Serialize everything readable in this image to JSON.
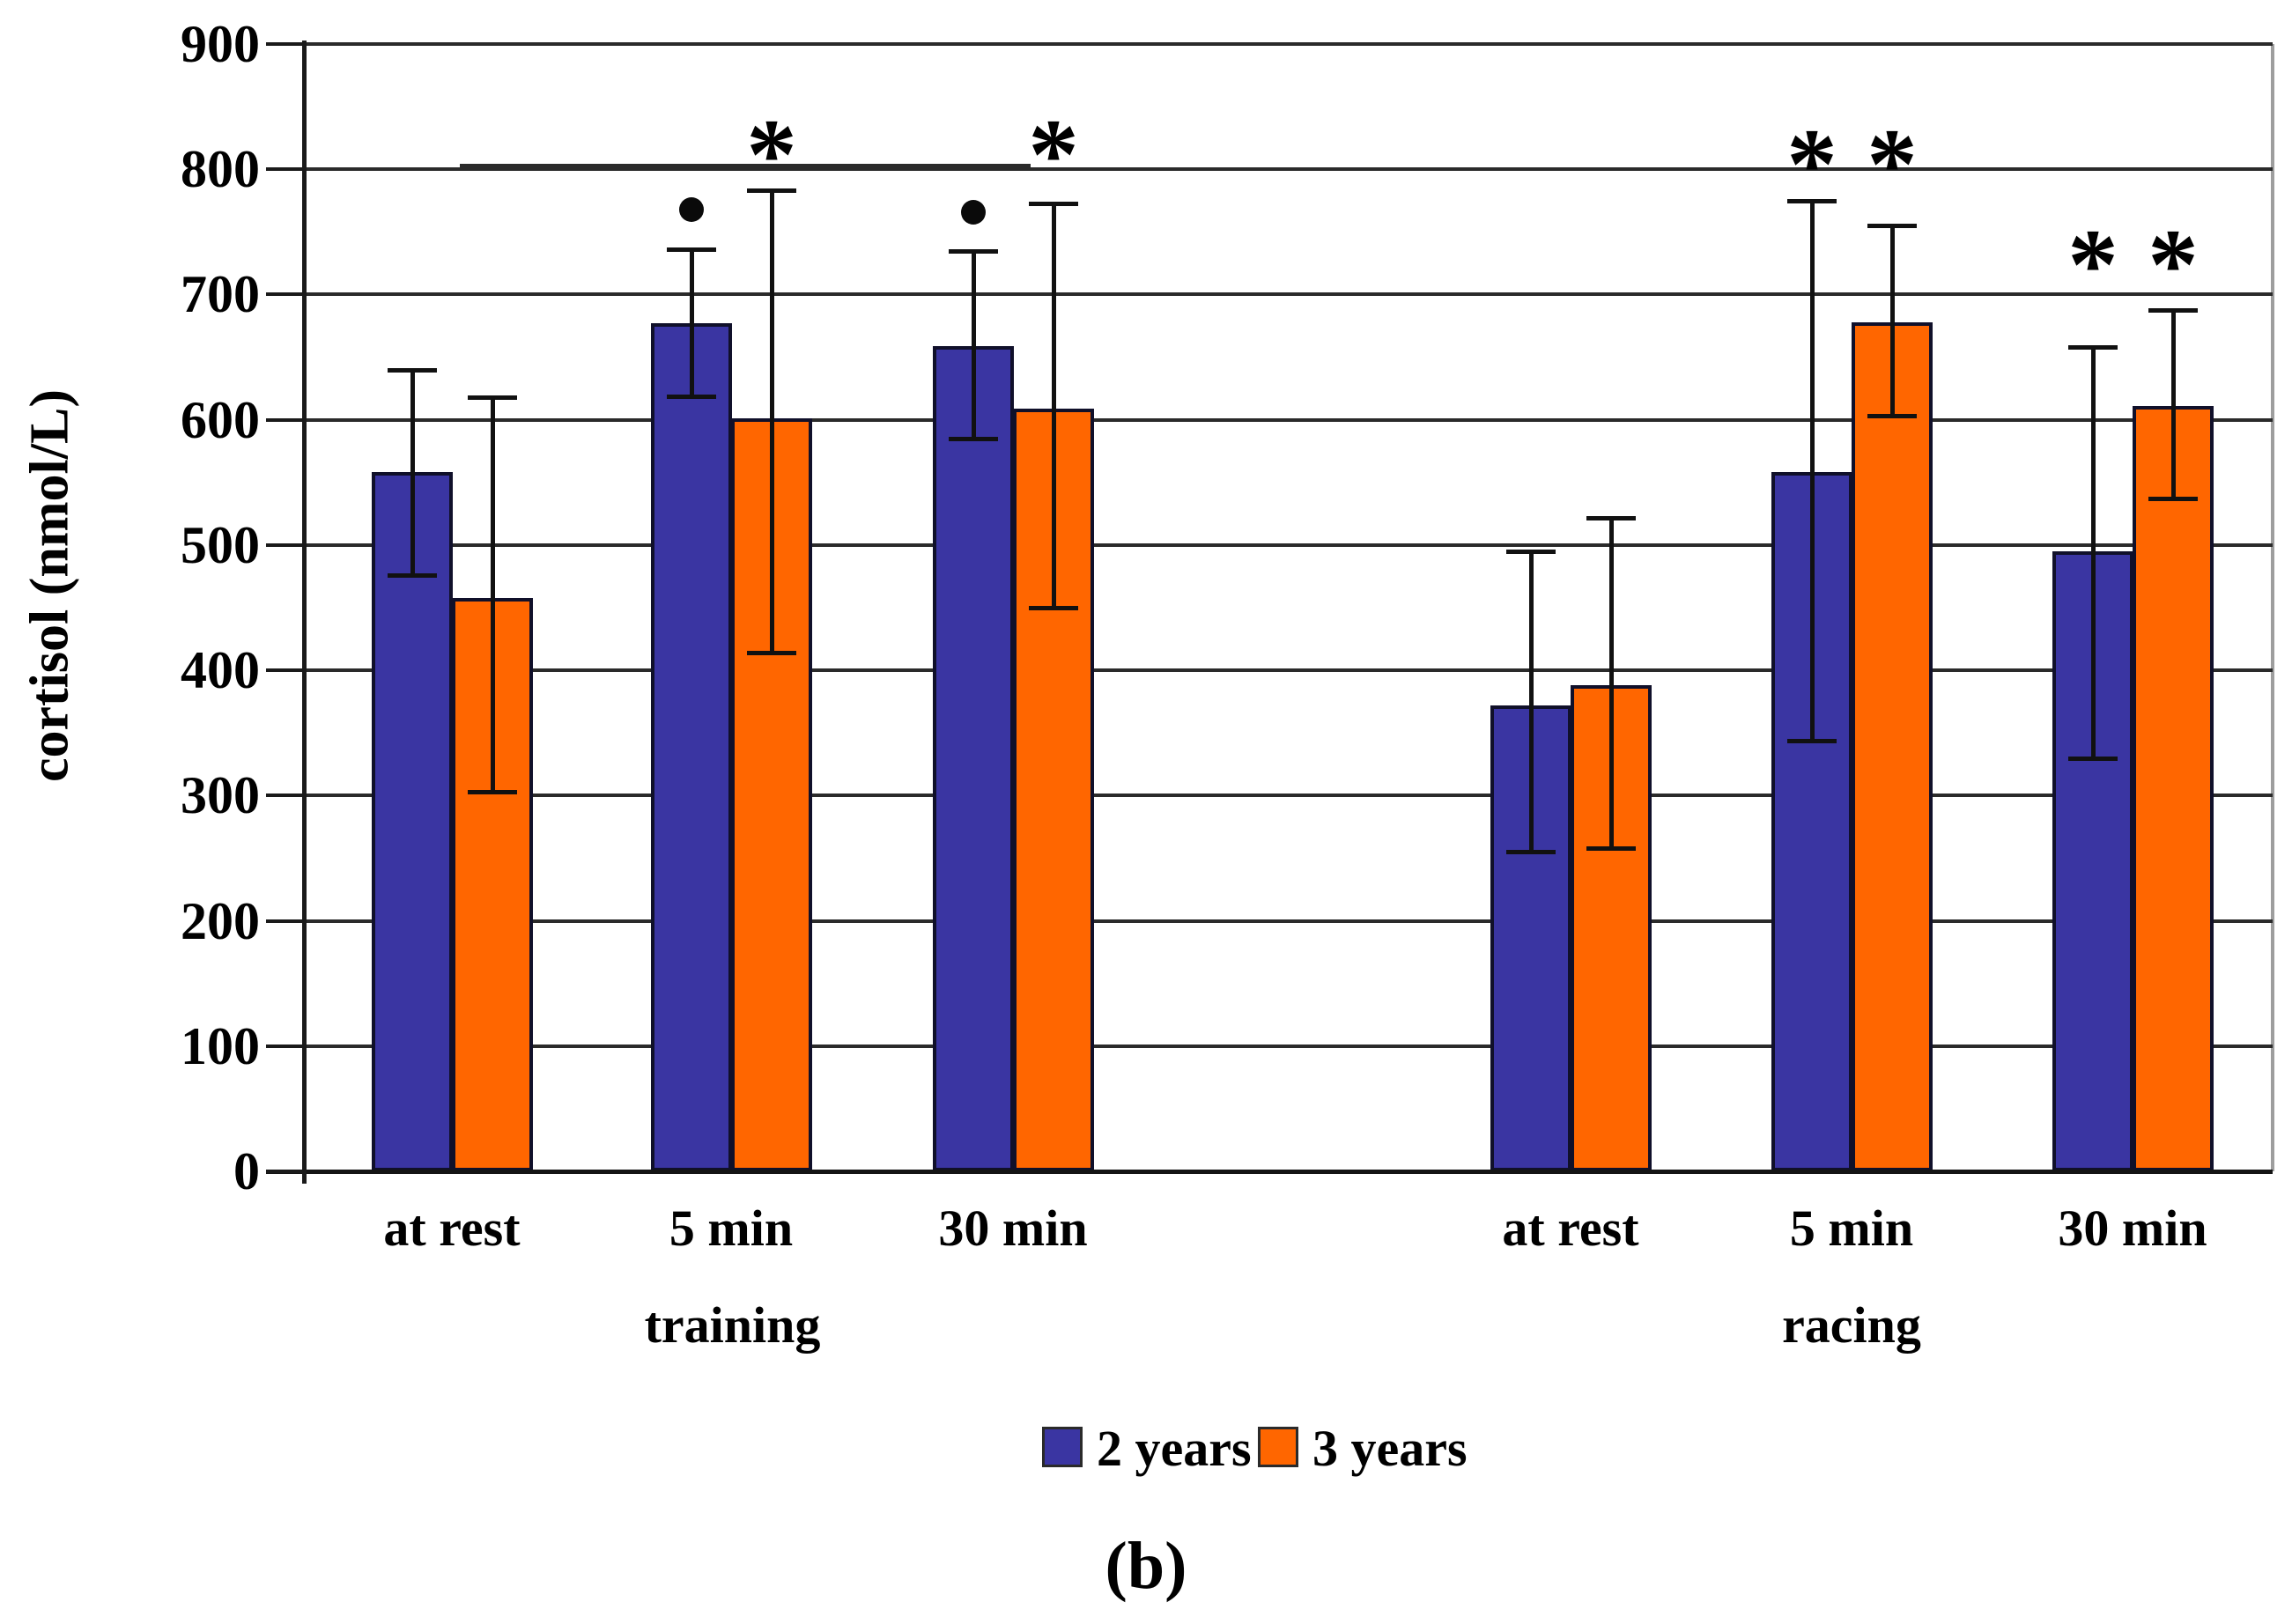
{
  "figure": {
    "caption": "(b)"
  },
  "chart_data": {
    "type": "bar",
    "title": "",
    "xlabel": "",
    "ylabel": "cortisol (nmol/L)",
    "ylim": [
      0,
      900
    ],
    "y_ticks": [
      0,
      100,
      200,
      300,
      400,
      500,
      600,
      700,
      800,
      900
    ],
    "grid": true,
    "legend_position": "bottom",
    "sections": [
      "training",
      "racing"
    ],
    "categories": [
      "at rest",
      "5 min",
      "30 min",
      "at rest",
      "5 min",
      "30 min"
    ],
    "series": [
      {
        "name": "2 years",
        "color": "#3A35A2",
        "values": [
          558,
          677,
          659,
          372,
          558,
          495
        ],
        "err_low": [
          476,
          619,
          585,
          255,
          344,
          330
        ],
        "err_high": [
          640,
          736,
          735,
          495,
          775,
          658
        ]
      },
      {
        "name": "3 years",
        "color": "#FF6600",
        "values": [
          458,
          601,
          609,
          388,
          678,
          611
        ],
        "err_low": [
          303,
          414,
          450,
          258,
          603,
          537
        ],
        "err_high": [
          618,
          783,
          773,
          522,
          755,
          688
        ]
      }
    ],
    "annotations": [
      {
        "glyph": "bullet",
        "series": 0,
        "group": 1,
        "value": 768
      },
      {
        "glyph": "bullet",
        "series": 0,
        "group": 2,
        "value": 766
      },
      {
        "glyph": "asterisk",
        "series": 1,
        "group": 1,
        "value": 830
      },
      {
        "glyph": "asterisk",
        "series": 1,
        "group": 2,
        "value": 830
      },
      {
        "glyph": "asterisk",
        "series": 0,
        "group": 4,
        "value": 822
      },
      {
        "glyph": "asterisk",
        "series": 1,
        "group": 4,
        "value": 822
      },
      {
        "glyph": "asterisk",
        "series": 0,
        "group": 5,
        "value": 742
      },
      {
        "glyph": "asterisk",
        "series": 1,
        "group": 5,
        "value": 742
      }
    ],
    "bracket": {
      "value": 803,
      "x1": 522,
      "x2": 1170
    }
  }
}
